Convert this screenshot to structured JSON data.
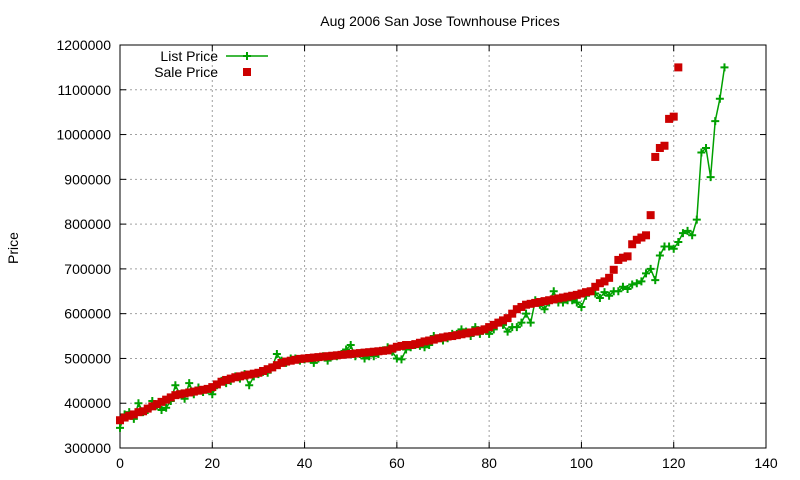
{
  "chart_data": {
    "type": "line",
    "title": "Aug 2006 San Jose Townhouse Prices",
    "xlabel": "",
    "ylabel": "Price",
    "xlim": [
      0,
      140
    ],
    "ylim": [
      300000,
      1200000
    ],
    "xticks": [
      0,
      20,
      40,
      60,
      80,
      100,
      120,
      140
    ],
    "yticks": [
      300000,
      400000,
      500000,
      600000,
      700000,
      800000,
      900000,
      1000000,
      1100000,
      1200000
    ],
    "grid": true,
    "legend_position": "top-left",
    "series": [
      {
        "name": "List Price",
        "style": "line-with-plus-markers",
        "color": "#00a000",
        "values": [
          [
            0,
            345000
          ],
          [
            1,
            375000
          ],
          [
            2,
            380000
          ],
          [
            3,
            365000
          ],
          [
            4,
            400000
          ],
          [
            5,
            380000
          ],
          [
            6,
            385000
          ],
          [
            7,
            405000
          ],
          [
            8,
            395000
          ],
          [
            9,
            385000
          ],
          [
            10,
            390000
          ],
          [
            11,
            405000
          ],
          [
            12,
            440000
          ],
          [
            13,
            420000
          ],
          [
            14,
            410000
          ],
          [
            15,
            445000
          ],
          [
            16,
            420000
          ],
          [
            17,
            435000
          ],
          [
            18,
            425000
          ],
          [
            19,
            430000
          ],
          [
            20,
            420000
          ],
          [
            21,
            440000
          ],
          [
            22,
            450000
          ],
          [
            23,
            445000
          ],
          [
            24,
            450000
          ],
          [
            25,
            460000
          ],
          [
            26,
            455000
          ],
          [
            27,
            465000
          ],
          [
            28,
            440000
          ],
          [
            29,
            460000
          ],
          [
            30,
            465000
          ],
          [
            31,
            470000
          ],
          [
            32,
            468000
          ],
          [
            33,
            480000
          ],
          [
            34,
            510000
          ],
          [
            35,
            495000
          ],
          [
            36,
            490000
          ],
          [
            37,
            500000
          ],
          [
            38,
            500000
          ],
          [
            39,
            495000
          ],
          [
            40,
            498000
          ],
          [
            41,
            500000
          ],
          [
            42,
            490000
          ],
          [
            43,
            500000
          ],
          [
            44,
            505000
          ],
          [
            45,
            495000
          ],
          [
            46,
            505000
          ],
          [
            47,
            505000
          ],
          [
            48,
            510000
          ],
          [
            49,
            520000
          ],
          [
            50,
            530000
          ],
          [
            51,
            505000
          ],
          [
            52,
            510000
          ],
          [
            53,
            500000
          ],
          [
            54,
            505000
          ],
          [
            55,
            505000
          ],
          [
            56,
            510000
          ],
          [
            57,
            518000
          ],
          [
            58,
            525000
          ],
          [
            59,
            515000
          ],
          [
            60,
            500000
          ],
          [
            61,
            498000
          ],
          [
            62,
            520000
          ],
          [
            63,
            525000
          ],
          [
            64,
            530000
          ],
          [
            65,
            528000
          ],
          [
            66,
            525000
          ],
          [
            67,
            530000
          ],
          [
            68,
            550000
          ],
          [
            69,
            545000
          ],
          [
            70,
            540000
          ],
          [
            71,
            545000
          ],
          [
            72,
            555000
          ],
          [
            73,
            555000
          ],
          [
            74,
            565000
          ],
          [
            75,
            560000
          ],
          [
            76,
            550000
          ],
          [
            77,
            570000
          ],
          [
            78,
            555000
          ],
          [
            79,
            565000
          ],
          [
            80,
            555000
          ],
          [
            81,
            565000
          ],
          [
            82,
            580000
          ],
          [
            83,
            575000
          ],
          [
            84,
            560000
          ],
          [
            85,
            570000
          ],
          [
            86,
            570000
          ],
          [
            87,
            580000
          ],
          [
            88,
            600000
          ],
          [
            89,
            580000
          ],
          [
            90,
            630000
          ],
          [
            91,
            620000
          ],
          [
            92,
            610000
          ],
          [
            93,
            625000
          ],
          [
            94,
            650000
          ],
          [
            95,
            625000
          ],
          [
            96,
            625000
          ],
          [
            97,
            630000
          ],
          [
            98,
            630000
          ],
          [
            99,
            625000
          ],
          [
            100,
            615000
          ],
          [
            101,
            640000
          ],
          [
            102,
            650000
          ],
          [
            103,
            645000
          ],
          [
            104,
            635000
          ],
          [
            105,
            648000
          ],
          [
            106,
            640000
          ],
          [
            107,
            650000
          ],
          [
            108,
            650000
          ],
          [
            109,
            660000
          ],
          [
            110,
            655000
          ],
          [
            111,
            665000
          ],
          [
            112,
            668000
          ],
          [
            113,
            672000
          ],
          [
            114,
            690000
          ],
          [
            115,
            700000
          ],
          [
            116,
            675000
          ],
          [
            117,
            730000
          ],
          [
            118,
            750000
          ],
          [
            119,
            750000
          ],
          [
            120,
            745000
          ],
          [
            121,
            760000
          ],
          [
            122,
            780000
          ],
          [
            123,
            785000
          ],
          [
            124,
            775000
          ],
          [
            125,
            810000
          ],
          [
            126,
            960000
          ],
          [
            127,
            970000
          ],
          [
            128,
            905000
          ],
          [
            129,
            1030000
          ],
          [
            130,
            1080000
          ],
          [
            131,
            1150000
          ]
        ]
      },
      {
        "name": "Sale Price",
        "style": "square-markers",
        "color": "#cc0000",
        "values": [
          [
            0,
            362000
          ],
          [
            1,
            368000
          ],
          [
            2,
            372000
          ],
          [
            3,
            375000
          ],
          [
            4,
            380000
          ],
          [
            5,
            382000
          ],
          [
            6,
            388000
          ],
          [
            7,
            393000
          ],
          [
            8,
            398000
          ],
          [
            9,
            403000
          ],
          [
            10,
            408000
          ],
          [
            11,
            413000
          ],
          [
            12,
            418000
          ],
          [
            13,
            420000
          ],
          [
            14,
            422000
          ],
          [
            15,
            424000
          ],
          [
            16,
            426000
          ],
          [
            17,
            428000
          ],
          [
            18,
            430000
          ],
          [
            19,
            432000
          ],
          [
            20,
            436000
          ],
          [
            21,
            442000
          ],
          [
            22,
            448000
          ],
          [
            23,
            452000
          ],
          [
            24,
            455000
          ],
          [
            25,
            458000
          ],
          [
            26,
            460000
          ],
          [
            27,
            462000
          ],
          [
            28,
            464000
          ],
          [
            29,
            466000
          ],
          [
            30,
            468000
          ],
          [
            31,
            472000
          ],
          [
            32,
            476000
          ],
          [
            33,
            480000
          ],
          [
            34,
            485000
          ],
          [
            35,
            490000
          ],
          [
            36,
            493000
          ],
          [
            37,
            495000
          ],
          [
            38,
            497000
          ],
          [
            39,
            499000
          ],
          [
            40,
            500000
          ],
          [
            41,
            501000
          ],
          [
            42,
            502000
          ],
          [
            43,
            503000
          ],
          [
            44,
            504000
          ],
          [
            45,
            505000
          ],
          [
            46,
            506000
          ],
          [
            47,
            507000
          ],
          [
            48,
            508000
          ],
          [
            49,
            509000
          ],
          [
            50,
            510000
          ],
          [
            51,
            511000
          ],
          [
            52,
            512000
          ],
          [
            53,
            513000
          ],
          [
            54,
            514000
          ],
          [
            55,
            515000
          ],
          [
            56,
            516000
          ],
          [
            57,
            517000
          ],
          [
            58,
            518000
          ],
          [
            59,
            522000
          ],
          [
            60,
            526000
          ],
          [
            61,
            528000
          ],
          [
            62,
            530000
          ],
          [
            63,
            530000
          ],
          [
            64,
            532000
          ],
          [
            65,
            535000
          ],
          [
            66,
            538000
          ],
          [
            67,
            540000
          ],
          [
            68,
            542000
          ],
          [
            69,
            545000
          ],
          [
            70,
            547000
          ],
          [
            71,
            549000
          ],
          [
            72,
            550000
          ],
          [
            73,
            552000
          ],
          [
            74,
            554000
          ],
          [
            75,
            556000
          ],
          [
            76,
            558000
          ],
          [
            77,
            560000
          ],
          [
            78,
            562000
          ],
          [
            79,
            565000
          ],
          [
            80,
            570000
          ],
          [
            81,
            575000
          ],
          [
            82,
            580000
          ],
          [
            83,
            585000
          ],
          [
            84,
            590000
          ],
          [
            85,
            600000
          ],
          [
            86,
            610000
          ],
          [
            87,
            615000
          ],
          [
            88,
            620000
          ],
          [
            89,
            622000
          ],
          [
            90,
            624000
          ],
          [
            91,
            626000
          ],
          [
            92,
            628000
          ],
          [
            93,
            630000
          ],
          [
            94,
            632000
          ],
          [
            95,
            634000
          ],
          [
            96,
            636000
          ],
          [
            97,
            638000
          ],
          [
            98,
            640000
          ],
          [
            99,
            642000
          ],
          [
            100,
            645000
          ],
          [
            101,
            648000
          ],
          [
            102,
            650000
          ],
          [
            103,
            660000
          ],
          [
            104,
            668000
          ],
          [
            105,
            672000
          ],
          [
            106,
            680000
          ],
          [
            107,
            698000
          ],
          [
            108,
            720000
          ],
          [
            109,
            725000
          ],
          [
            110,
            728000
          ],
          [
            111,
            755000
          ],
          [
            112,
            765000
          ],
          [
            113,
            770000
          ],
          [
            114,
            775000
          ],
          [
            115,
            820000
          ],
          [
            116,
            950000
          ],
          [
            117,
            970000
          ],
          [
            118,
            975000
          ],
          [
            119,
            1035000
          ],
          [
            120,
            1040000
          ],
          [
            121,
            1150000
          ]
        ]
      }
    ]
  }
}
